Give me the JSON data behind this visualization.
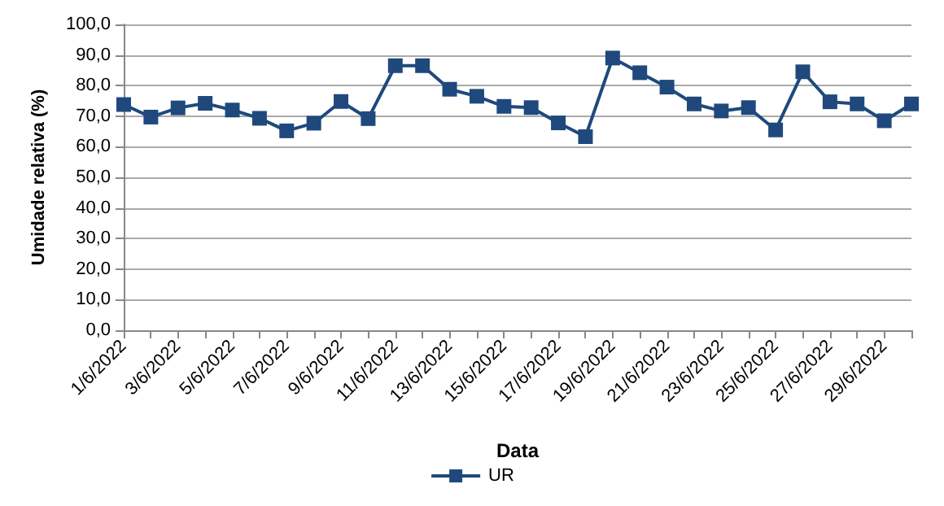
{
  "chart_data": {
    "type": "line",
    "xlabel": "Data",
    "ylabel": "Umidade relativa (%)",
    "categories": [
      "1/6/2022",
      null,
      "3/6/2022",
      null,
      "5/6/2022",
      null,
      "7/6/2022",
      null,
      "9/6/2022",
      null,
      "11/6/2022",
      null,
      "13/6/2022",
      null,
      "15/6/2022",
      null,
      "17/6/2022",
      null,
      "19/6/2022",
      null,
      "21/6/2022",
      null,
      "23/6/2022",
      null,
      "25/6/2022",
      null,
      "27/6/2022",
      null,
      "29/6/2022",
      null
    ],
    "series": [
      {
        "name": "UR",
        "color": "#1f497d",
        "values": [
          73.8,
          69.7,
          72.7,
          74.2,
          72,
          69.3,
          65.2,
          67.7,
          74.8,
          69.2,
          86.5,
          86.5,
          78.8,
          76.5,
          73.2,
          72.8,
          67.8,
          63.3,
          89,
          84.2,
          79.5,
          74,
          71.7,
          72.8,
          65.5,
          84.5,
          74.7,
          74,
          68.5,
          74
        ]
      }
    ],
    "ylim": [
      0,
      100
    ],
    "yticks": [
      {
        "value": 0,
        "label": "0,0"
      },
      {
        "value": 10,
        "label": "10,0"
      },
      {
        "value": 20,
        "label": "20,0"
      },
      {
        "value": 30,
        "label": "30,0"
      },
      {
        "value": 40,
        "label": "40,0"
      },
      {
        "value": 50,
        "label": "50,0"
      },
      {
        "value": 60,
        "label": "60,0"
      },
      {
        "value": 70,
        "label": "70,0"
      },
      {
        "value": 80,
        "label": "80,0"
      },
      {
        "value": 90,
        "label": "90,0"
      },
      {
        "value": 100,
        "label": "100,0"
      }
    ],
    "grid": "y",
    "legend": "bottom",
    "marker": "square",
    "line_style": "solid"
  }
}
